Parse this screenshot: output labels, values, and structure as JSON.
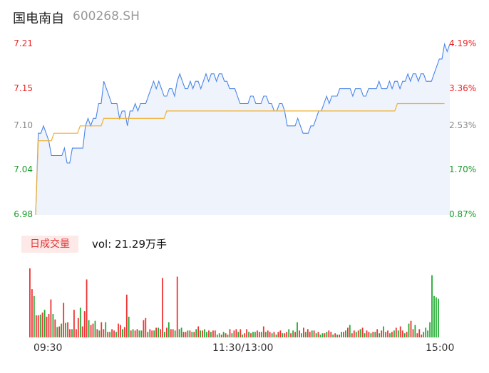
{
  "header": {
    "name": "国电南自",
    "code": "600268.SH"
  },
  "volume_label": {
    "badge": "日成交量",
    "text": "vol: 21.29万手"
  },
  "colors": {
    "price": "#4b86e8",
    "avg": "#f0b030",
    "up": "#ee3333",
    "down": "#22aa33",
    "fill": "#eef3fc"
  },
  "chart_data": [
    {
      "type": "line",
      "series": [
        {
          "name": "",
          "values": [
            6.98,
            7.09,
            7.09,
            7.1,
            7.09,
            7.08,
            7.06,
            7.06,
            7.06,
            7.06,
            7.06,
            7.07,
            7.05,
            7.05,
            7.07,
            7.07,
            7.07,
            7.07,
            7.07,
            7.1,
            7.11,
            7.1,
            7.11,
            7.11,
            7.13,
            7.13,
            7.16,
            7.15,
            7.14,
            7.13,
            7.13,
            7.13,
            7.11,
            7.12,
            7.12,
            7.1,
            7.12,
            7.12,
            7.13,
            7.12,
            7.13,
            7.13,
            7.13,
            7.14,
            7.15,
            7.16,
            7.15,
            7.16,
            7.15,
            7.14,
            7.14,
            7.15,
            7.15,
            7.14,
            7.16,
            7.17,
            7.16,
            7.15,
            7.15,
            7.16,
            7.15,
            7.16,
            7.16,
            7.15,
            7.16,
            7.17,
            7.16,
            7.17,
            7.17,
            7.16,
            7.17,
            7.17,
            7.16,
            7.16,
            7.15,
            7.15,
            7.15,
            7.14,
            7.13,
            7.13,
            7.13,
            7.13,
            7.14,
            7.14,
            7.13,
            7.13,
            7.13,
            7.14,
            7.14,
            7.13,
            7.13,
            7.12,
            7.12,
            7.13,
            7.13,
            7.12,
            7.1,
            7.1,
            7.1,
            7.1,
            7.11,
            7.1,
            7.09,
            7.09,
            7.09,
            7.1,
            7.1,
            7.11,
            7.12,
            7.12,
            7.13,
            7.14,
            7.13,
            7.14,
            7.14,
            7.14,
            7.15,
            7.15,
            7.15,
            7.15,
            7.15,
            7.14,
            7.15,
            7.15,
            7.15,
            7.14,
            7.14,
            7.15,
            7.15,
            7.15,
            7.15,
            7.16,
            7.15,
            7.15,
            7.15,
            7.16,
            7.15,
            7.16,
            7.16,
            7.15,
            7.16,
            7.16,
            7.17,
            7.16,
            7.17,
            7.17,
            7.16,
            7.17,
            7.17,
            7.16,
            7.16,
            7.16,
            7.17,
            7.18,
            7.19,
            7.19,
            7.21,
            7.2,
            7.21
          ],
          "color": "#4b86e8"
        },
        {
          "name": "",
          "values": [
            6.98,
            7.08,
            7.08,
            7.08,
            7.08,
            7.08,
            7.08,
            7.09,
            7.09,
            7.09,
            7.09,
            7.09,
            7.09,
            7.09,
            7.09,
            7.09,
            7.09,
            7.1,
            7.1,
            7.1,
            7.1,
            7.1,
            7.1,
            7.1,
            7.1,
            7.1,
            7.11,
            7.11,
            7.11,
            7.11,
            7.11,
            7.11,
            7.11,
            7.11,
            7.11,
            7.11,
            7.11,
            7.11,
            7.11,
            7.11,
            7.11,
            7.11,
            7.11,
            7.11,
            7.11,
            7.11,
            7.11,
            7.11,
            7.11,
            7.11,
            7.12,
            7.12,
            7.12,
            7.12,
            7.12,
            7.12,
            7.12,
            7.12,
            7.12,
            7.12,
            7.12,
            7.12,
            7.12,
            7.12,
            7.12,
            7.12,
            7.12,
            7.12,
            7.12,
            7.12,
            7.12,
            7.12,
            7.12,
            7.12,
            7.12,
            7.12,
            7.12,
            7.12,
            7.12,
            7.12,
            7.12,
            7.12,
            7.12,
            7.12,
            7.12,
            7.12,
            7.12,
            7.12,
            7.12,
            7.12,
            7.12,
            7.12,
            7.12,
            7.12,
            7.12,
            7.12,
            7.12,
            7.12,
            7.12,
            7.12,
            7.12,
            7.12,
            7.12,
            7.12,
            7.12,
            7.12,
            7.12,
            7.12,
            7.12,
            7.12,
            7.12,
            7.12,
            7.12,
            7.12,
            7.12,
            7.12,
            7.12,
            7.12,
            7.12,
            7.12,
            7.12,
            7.12,
            7.12,
            7.12,
            7.12,
            7.12,
            7.12,
            7.12,
            7.12,
            7.12,
            7.12,
            7.12,
            7.12,
            7.12,
            7.12,
            7.12,
            7.12,
            7.12,
            7.13,
            7.13,
            7.13,
            7.13,
            7.13,
            7.13,
            7.13,
            7.13,
            7.13,
            7.13,
            7.13,
            7.13,
            7.13,
            7.13,
            7.13,
            7.13,
            7.13,
            7.13,
            7.13
          ],
          "color": "#f0b030"
        }
      ],
      "yticks_left": [
        {
          "label": "7.21",
          "value": 7.21,
          "tone": "red"
        },
        {
          "label": "7.15",
          "value": 7.15,
          "tone": "red"
        },
        {
          "label": "7.10",
          "value": 7.1,
          "tone": "grey"
        },
        {
          "label": "7.04",
          "value": 7.04,
          "tone": "green"
        },
        {
          "label": "6.98",
          "value": 6.98,
          "tone": "green"
        }
      ],
      "yticks_right": [
        {
          "label": "4.19%",
          "value": 7.21,
          "tone": "red"
        },
        {
          "label": "3.36%",
          "value": 7.15,
          "tone": "red"
        },
        {
          "label": "2.53%",
          "value": 7.1,
          "tone": "grey"
        },
        {
          "label": "1.70%",
          "value": 7.04,
          "tone": "green"
        },
        {
          "label": "0.87%",
          "value": 6.98,
          "tone": "green"
        }
      ],
      "ylim": [
        6.98,
        7.21
      ]
    },
    {
      "type": "bar",
      "title": "",
      "ylim": [
        0,
        100
      ],
      "xticks": [
        "09:30",
        "11:30/13:00",
        "15:00"
      ],
      "values": [
        100,
        70,
        60,
        32,
        32,
        33,
        36,
        40,
        30,
        34,
        55,
        34,
        26,
        15,
        16,
        20,
        50,
        21,
        22,
        12,
        12,
        40,
        12,
        28,
        43,
        16,
        38,
        84,
        25,
        18,
        20,
        24,
        12,
        10,
        22,
        12,
        22,
        8,
        8,
        12,
        10,
        8,
        20,
        18,
        12,
        15,
        62,
        30,
        10,
        12,
        10,
        12,
        10,
        10,
        25,
        28,
        8,
        12,
        10,
        10,
        14,
        14,
        12,
        86,
        8,
        14,
        22,
        12,
        12,
        10,
        88,
        12,
        14,
        8,
        8,
        10,
        10,
        8,
        8,
        12,
        16,
        10,
        10,
        12,
        8,
        10,
        8,
        10,
        10,
        4,
        6,
        4,
        8,
        6,
        4,
        12,
        6,
        10,
        12,
        8,
        12,
        4,
        6,
        12,
        8,
        6,
        8,
        8,
        10,
        8,
        8,
        16,
        8,
        10,
        8,
        6,
        8,
        4,
        8,
        10,
        6,
        6,
        8,
        12,
        6,
        10,
        8,
        22,
        10,
        6,
        14,
        8,
        12,
        8,
        10,
        10,
        6,
        8,
        4,
        6,
        6,
        8,
        10,
        8,
        4,
        6,
        4,
        4,
        8,
        8,
        10,
        14,
        18,
        6,
        10,
        8,
        10,
        12,
        14,
        6,
        10,
        8,
        6,
        8,
        8,
        12,
        6,
        10,
        16,
        8,
        10,
        6,
        8,
        10,
        14,
        10,
        16,
        10,
        6,
        8,
        20,
        24,
        12,
        18,
        6,
        12,
        4,
        8,
        14,
        10,
        22,
        90,
        60,
        58,
        56
      ],
      "directions": [
        1,
        1,
        0,
        1,
        1,
        0,
        1,
        0,
        1,
        1,
        1,
        0,
        1,
        0,
        1,
        0,
        1,
        0,
        1,
        1,
        0,
        1,
        1,
        1,
        0,
        1,
        1,
        1,
        0,
        1,
        1,
        0,
        1,
        0,
        1,
        1,
        0,
        1,
        0,
        1,
        1,
        0,
        1,
        1,
        0,
        1,
        1,
        0,
        1,
        0,
        1,
        1,
        0,
        0,
        1,
        1,
        0,
        1,
        1,
        0,
        1,
        0,
        1,
        1,
        0,
        1,
        0,
        1,
        1,
        0,
        1,
        0,
        0,
        1,
        1,
        0,
        1,
        0,
        1,
        0,
        1,
        0,
        1,
        0,
        0,
        1,
        0,
        1,
        1,
        0,
        0,
        1,
        0,
        1,
        0,
        1,
        0,
        1,
        1,
        0,
        1,
        0,
        1,
        1,
        0,
        1,
        0,
        0,
        1,
        1,
        0,
        1,
        0,
        1,
        1,
        0,
        1,
        0,
        1,
        1,
        0,
        1,
        1,
        0,
        1,
        0,
        1,
        0,
        1,
        0,
        1,
        0,
        1,
        1,
        0,
        1,
        0,
        1,
        0,
        0,
        1,
        0,
        1,
        1,
        0,
        1,
        0,
        1,
        0,
        1,
        0,
        1,
        0,
        1,
        1,
        0,
        1,
        0,
        1,
        0,
        1,
        1,
        0,
        1,
        0,
        1,
        0,
        1,
        0,
        1,
        1,
        0,
        1,
        0,
        1,
        0,
        1,
        1,
        0,
        1,
        0,
        1,
        1,
        0,
        1,
        1,
        1,
        0
      ]
    }
  ]
}
